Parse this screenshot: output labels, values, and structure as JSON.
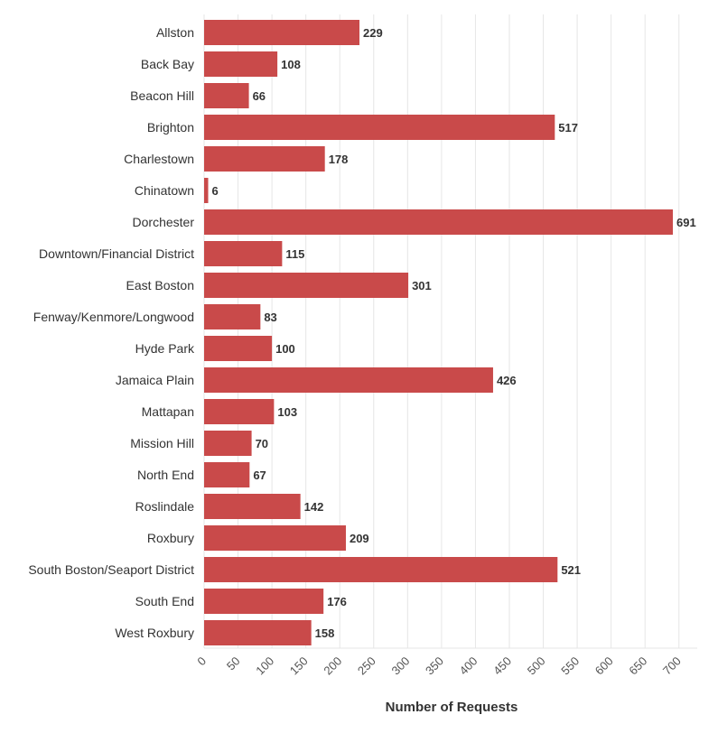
{
  "chart_data": {
    "type": "bar",
    "orientation": "horizontal",
    "title": "",
    "xlabel": "Number of Requests",
    "ylabel": "",
    "xlim": [
      0,
      730
    ],
    "ticks": [
      0,
      50,
      100,
      150,
      200,
      250,
      300,
      350,
      400,
      450,
      500,
      550,
      600,
      650,
      700
    ],
    "grid": true,
    "bar_color": "#c94a4a",
    "categories": [
      "Allston",
      "Back Bay",
      "Beacon Hill",
      "Brighton",
      "Charlestown",
      "Chinatown",
      "Dorchester",
      "Downtown/Financial District",
      "East Boston",
      "Fenway/Kenmore/Longwood",
      "Hyde Park",
      "Jamaica Plain",
      "Mattapan",
      "Mission Hill",
      "North End",
      "Roslindale",
      "Roxbury",
      "South Boston/Seaport District",
      "South End",
      "West Roxbury"
    ],
    "values": [
      229,
      108,
      66,
      517,
      178,
      6,
      691,
      115,
      301,
      83,
      100,
      426,
      103,
      70,
      67,
      142,
      209,
      521,
      176,
      158
    ]
  }
}
